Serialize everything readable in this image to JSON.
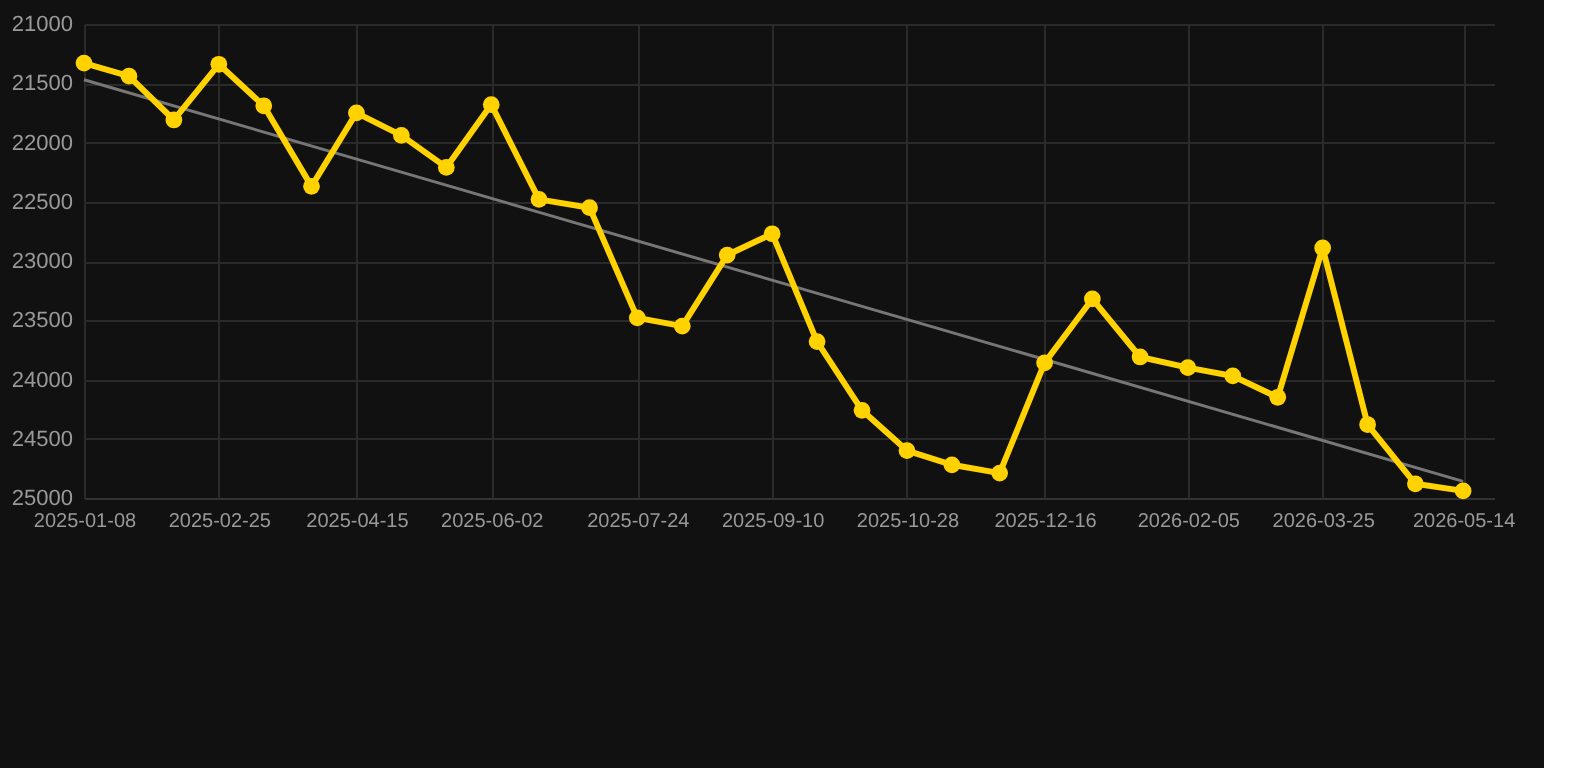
{
  "chart_data": {
    "type": "line",
    "x": [
      "2025-01-08",
      "2025-01-24",
      "2025-02-09",
      "2025-02-25",
      "2025-03-13",
      "2025-03-30",
      "2025-04-15",
      "2025-05-01",
      "2025-05-17",
      "2025-06-02",
      "2025-06-19",
      "2025-07-07",
      "2025-07-24",
      "2025-08-09",
      "2025-08-25",
      "2025-09-10",
      "2025-09-26",
      "2025-10-12",
      "2025-10-28",
      "2025-11-13",
      "2025-11-30",
      "2025-12-16",
      "2026-01-02",
      "2026-01-19",
      "2026-02-05",
      "2026-02-21",
      "2026-03-09",
      "2026-03-25",
      "2026-04-10",
      "2026-04-27",
      "2026-05-14"
    ],
    "series": [
      {
        "color": "#ffd200",
        "marker": "circle",
        "values": [
          21330,
          21440,
          21810,
          21340,
          21690,
          22370,
          21750,
          21940,
          22210,
          21680,
          22480,
          22550,
          23480,
          23550,
          22950,
          22770,
          23680,
          24260,
          24600,
          24720,
          24790,
          23860,
          23320,
          23810,
          23900,
          23970,
          24150,
          22890,
          24380,
          24880,
          24940
        ]
      },
      {
        "type": "line",
        "color": "#777777",
        "marker": "none",
        "x": [
          "2025-01-08",
          "2026-05-14"
        ],
        "values": [
          21470,
          24860
        ]
      }
    ],
    "xlim": [
      "2025-01-08",
      "2026-05-25"
    ],
    "xticks": [
      "2025-01-08",
      "2025-02-25",
      "2025-04-15",
      "2025-06-02",
      "2025-07-24",
      "2025-09-10",
      "2025-10-28",
      "2025-12-16",
      "2026-02-05",
      "2026-03-25",
      "2026-05-14"
    ],
    "ylim": [
      25000,
      21000
    ],
    "yticks": [
      21000,
      21500,
      22000,
      22500,
      23000,
      23500,
      24000,
      24500,
      25000
    ],
    "grid": true
  }
}
